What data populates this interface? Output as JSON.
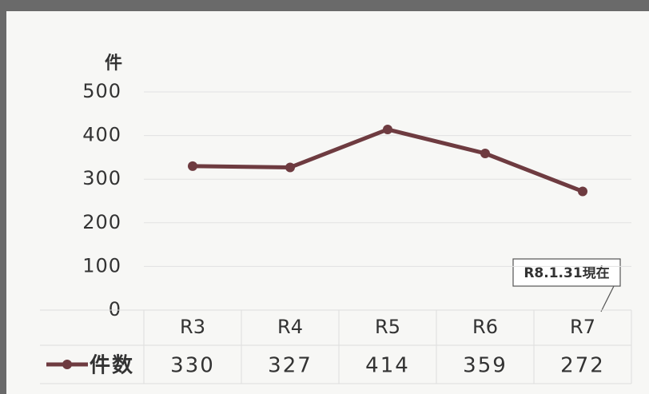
{
  "chart_data": {
    "type": "line",
    "y_unit": "件",
    "categories": [
      "R3",
      "R4",
      "R5",
      "R6",
      "R7"
    ],
    "series": [
      {
        "name": "件数",
        "color": "#6e3b40",
        "values": [
          330,
          327,
          414,
          359,
          272
        ]
      }
    ],
    "ylim": [
      0,
      500
    ],
    "yticks": [
      0,
      100,
      200,
      300,
      400,
      500
    ],
    "grid": true,
    "annotation": "R8.1.31現在"
  }
}
